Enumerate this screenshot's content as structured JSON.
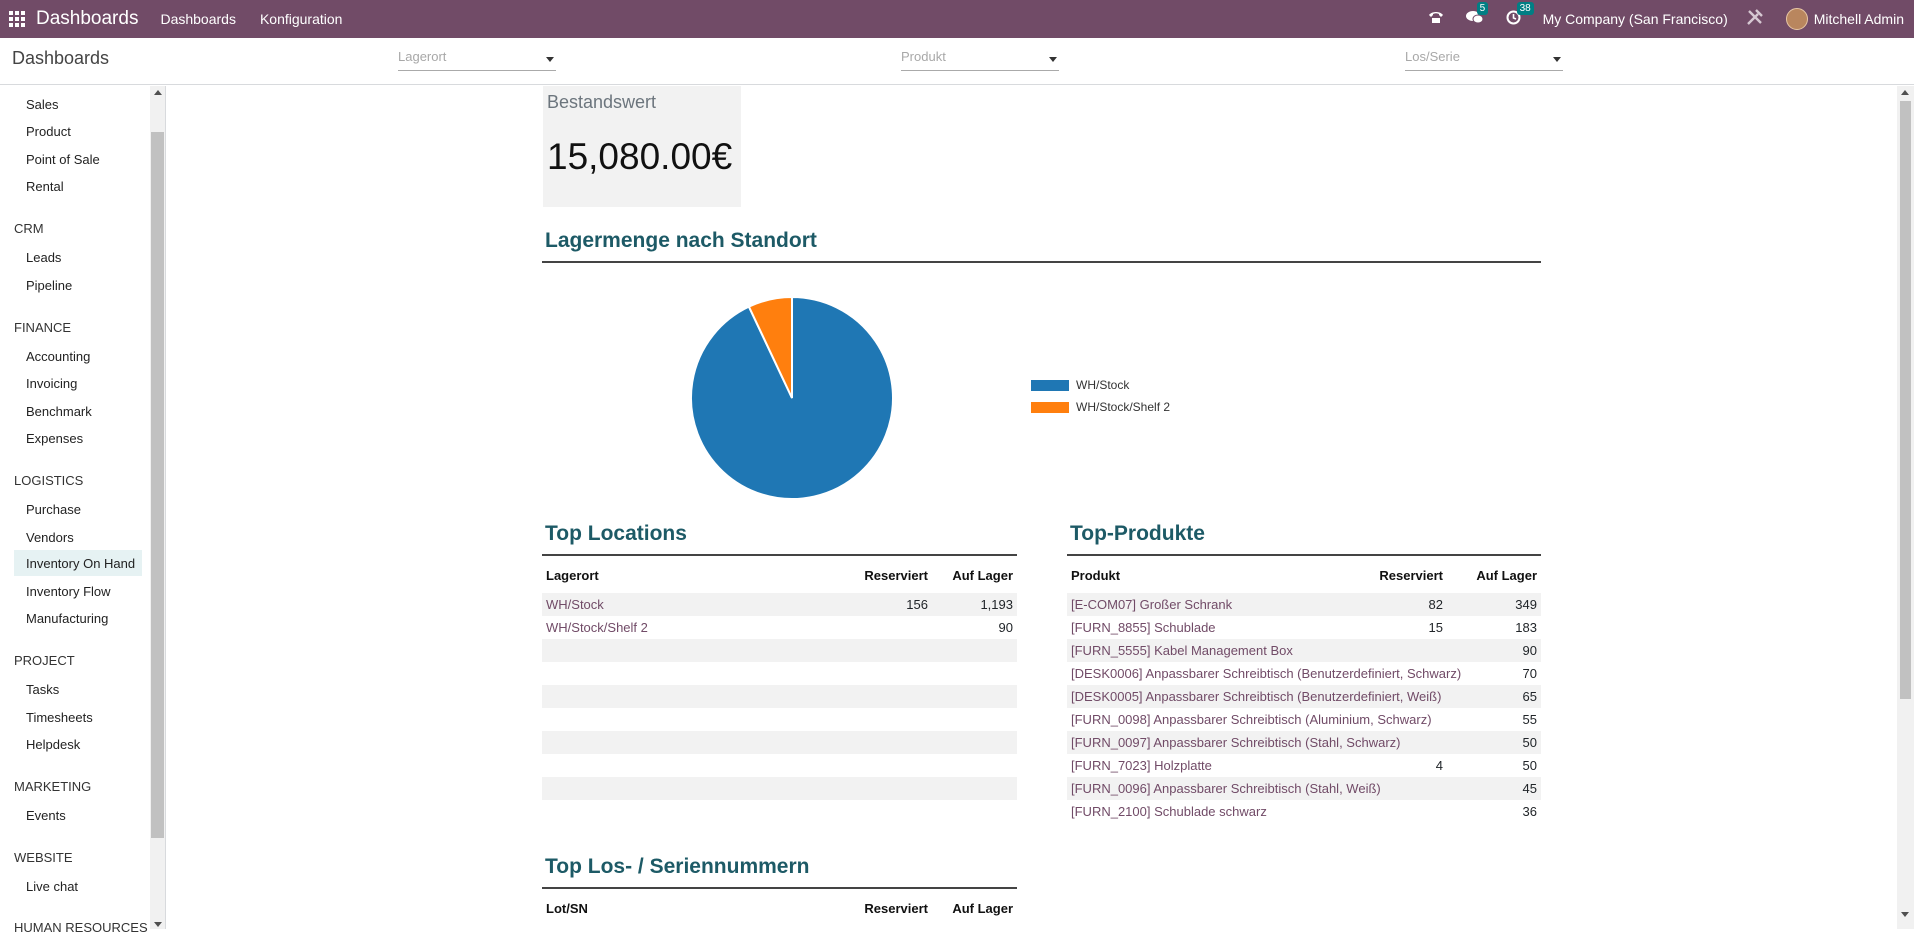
{
  "navbar": {
    "brand": "Dashboards",
    "menu": [
      "Dashboards",
      "Konfiguration"
    ],
    "messages_count": "5",
    "activities_count": "38",
    "company": "My Company (San Francisco)",
    "user": "Mitchell Admin"
  },
  "control": {
    "breadcrumb": "Dashboards",
    "filters": [
      {
        "placeholder": "Lagerort"
      },
      {
        "placeholder": "Produkt"
      },
      {
        "placeholder": "Los/Serie"
      }
    ]
  },
  "sidebar": {
    "items_top": [
      "Sales",
      "Product",
      "Point of Sale",
      "Rental"
    ],
    "crm": {
      "label": "CRM",
      "items": [
        "Leads",
        "Pipeline"
      ]
    },
    "finance": {
      "label": "FINANCE",
      "items": [
        "Accounting",
        "Invoicing",
        "Benchmark",
        "Expenses"
      ]
    },
    "logistics": {
      "label": "LOGISTICS",
      "items": [
        "Purchase",
        "Vendors",
        "Inventory On Hand",
        "Inventory Flow",
        "Manufacturing"
      ]
    },
    "project": {
      "label": "PROJECT",
      "items": [
        "Tasks",
        "Timesheets",
        "Helpdesk"
      ]
    },
    "marketing": {
      "label": "MARKETING",
      "items": [
        "Events"
      ]
    },
    "website": {
      "label": "WEBSITE",
      "items": [
        "Live chat"
      ]
    },
    "human_resources": {
      "label": "HUMAN RESOURCES"
    },
    "active_item": "Inventory On Hand"
  },
  "kpi": {
    "label": "Bestandswert",
    "value": "15,080.00€"
  },
  "pie_section": {
    "title": "Lagermenge nach Standort",
    "legend": [
      {
        "label": "WH/Stock",
        "color": "#1f77b4"
      },
      {
        "label": "WH/Stock/Shelf 2",
        "color": "#ff7f0e"
      }
    ]
  },
  "chart_data": {
    "type": "pie",
    "labels": [
      "WH/Stock",
      "WH/Stock/Shelf 2"
    ],
    "values": [
      1193,
      90
    ],
    "colors": [
      "#1f77b4",
      "#ff7f0e"
    ]
  },
  "top_locations": {
    "title": "Top Locations",
    "headers": [
      "Lagerort",
      "Reserviert",
      "Auf Lager"
    ],
    "rows": [
      [
        "WH/Stock",
        "156",
        "1,193"
      ],
      [
        "WH/Stock/Shelf 2",
        "",
        "90"
      ],
      [
        "",
        "",
        ""
      ],
      [
        "",
        "",
        ""
      ],
      [
        "",
        "",
        ""
      ],
      [
        "",
        "",
        ""
      ],
      [
        "",
        "",
        ""
      ],
      [
        "",
        "",
        ""
      ],
      [
        "",
        "",
        ""
      ]
    ]
  },
  "top_products": {
    "title": "Top-Produkte",
    "headers": [
      "Produkt",
      "Reserviert",
      "Auf Lager"
    ],
    "rows": [
      [
        "[E-COM07] Großer Schrank",
        "82",
        "349"
      ],
      [
        "[FURN_8855] Schublade",
        "15",
        "183"
      ],
      [
        "[FURN_5555] Kabel Management Box",
        "",
        "90"
      ],
      [
        "[DESK0006] Anpassbarer Schreibtisch (Benutzerdefiniert, Schwarz)",
        "",
        "70"
      ],
      [
        "[DESK0005] Anpassbarer Schreibtisch (Benutzerdefiniert, Weiß)",
        "",
        "65"
      ],
      [
        "[FURN_0098] Anpassbarer Schreibtisch (Aluminium, Schwarz)",
        "",
        "55"
      ],
      [
        "[FURN_0097] Anpassbarer Schreibtisch (Stahl, Schwarz)",
        "",
        "50"
      ],
      [
        "[FURN_7023] Holzplatte",
        "4",
        "50"
      ],
      [
        "[FURN_0096] Anpassbarer Schreibtisch (Stahl, Weiß)",
        "",
        "45"
      ],
      [
        "[FURN_2100] Schublade schwarz",
        "",
        "36"
      ]
    ]
  },
  "top_lots": {
    "title": "Top Los- / Seriennummern",
    "headers": [
      "Lot/SN",
      "Reserviert",
      "Auf Lager"
    ]
  }
}
